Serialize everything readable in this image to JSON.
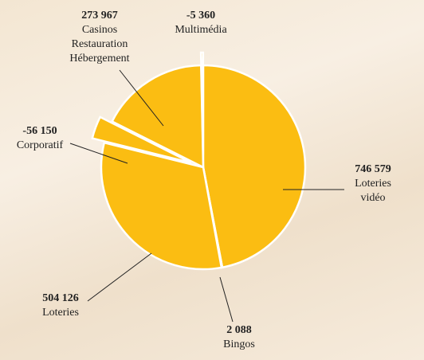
{
  "chart_data": {
    "type": "pie",
    "categories": [
      "Loteries vidéo",
      "Bingos",
      "Loteries",
      "Corporatif",
      "Casinos\nRestauration\nHébergement",
      "Multimédia"
    ],
    "values": [
      746579,
      2088,
      504126,
      -56150,
      273967,
      -5360
    ],
    "value_labels": [
      "746 579",
      "2 088",
      "504 126",
      "-56 150",
      "273 967",
      "-5 360"
    ],
    "color": "#fbbd12"
  }
}
